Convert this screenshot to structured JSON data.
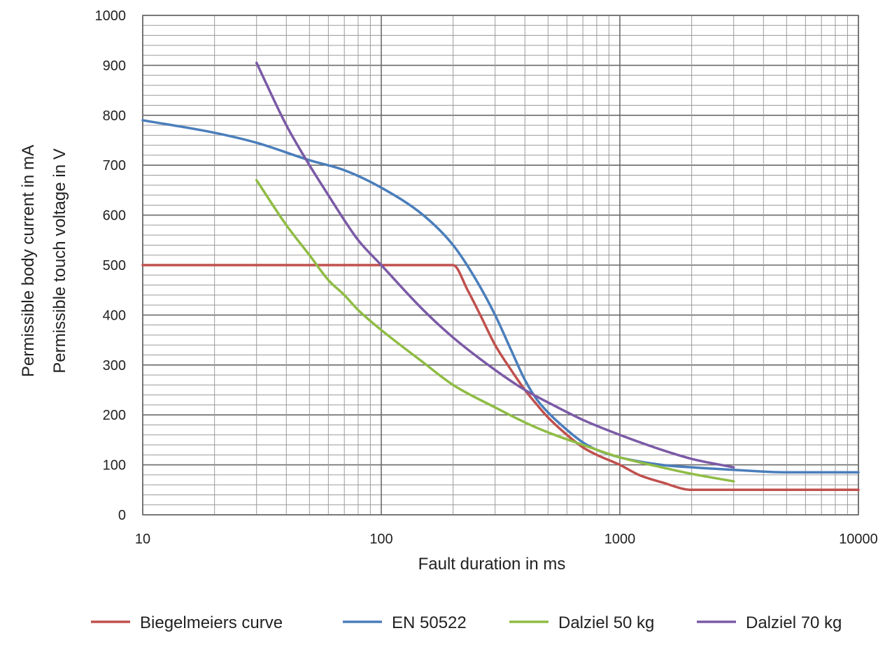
{
  "chart_data": {
    "type": "line",
    "xscale": "log",
    "xlim": [
      10,
      10000
    ],
    "ylim": [
      0,
      1000
    ],
    "xlabel": "Fault duration in ms",
    "ylabel_lines": [
      "Permissible body current in mA",
      "Permissible touch voltage in V"
    ],
    "x_ticks": [
      "10",
      "100",
      "1000",
      "10000"
    ],
    "y_ticks": [
      "0",
      "100",
      "200",
      "300",
      "400",
      "500",
      "600",
      "700",
      "800",
      "900",
      "1000"
    ],
    "grid": true,
    "legend_position": "bottom",
    "series": [
      {
        "name": "Biegelmeiers curve",
        "color": "#c0504d",
        "x": [
          10,
          200,
          230,
          260,
          300,
          350,
          400,
          450,
          500,
          600,
          700,
          800,
          1000,
          1200,
          1500,
          2000,
          3000,
          5000,
          10000
        ],
        "y": [
          500,
          500,
          450,
          400,
          340,
          290,
          250,
          220,
          195,
          160,
          135,
          120,
          100,
          80,
          65,
          50,
          50,
          50,
          50
        ]
      },
      {
        "name": "EN 50522",
        "color": "#4a7ebb",
        "x": [
          10,
          20,
          30,
          50,
          70,
          100,
          150,
          200,
          250,
          300,
          350,
          400,
          450,
          500,
          600,
          700,
          800,
          1000,
          1500,
          2000,
          3000,
          5000,
          10000
        ],
        "y": [
          790,
          765,
          745,
          710,
          690,
          655,
          600,
          540,
          470,
          400,
          330,
          270,
          230,
          205,
          170,
          145,
          130,
          115,
          100,
          95,
          90,
          85,
          85
        ]
      },
      {
        "name": "Dalziel 50 kg",
        "color": "#8fbc45",
        "x": [
          30,
          40,
          50,
          60,
          70,
          80,
          100,
          150,
          200,
          300,
          400,
          500,
          700,
          1000,
          1500,
          2000,
          3000
        ],
        "y": [
          670,
          580,
          520,
          470,
          440,
          410,
          370,
          305,
          260,
          215,
          185,
          165,
          140,
          115,
          95,
          82,
          67
        ]
      },
      {
        "name": "Dalziel 70 kg",
        "color": "#7b5aa6",
        "x": [
          30,
          40,
          50,
          60,
          70,
          80,
          100,
          150,
          200,
          300,
          400,
          500,
          700,
          1000,
          1500,
          2000,
          3000
        ],
        "y": [
          905,
          780,
          700,
          640,
          590,
          550,
          500,
          410,
          355,
          290,
          250,
          225,
          190,
          160,
          130,
          112,
          95
        ]
      }
    ]
  }
}
